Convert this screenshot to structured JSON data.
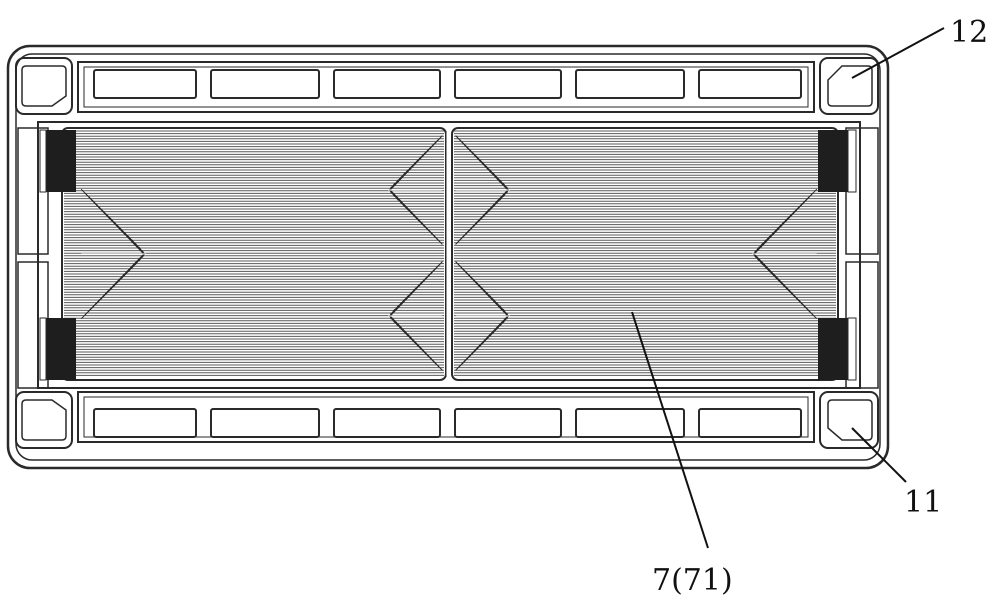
{
  "figure": {
    "labels": {
      "header_ports": "12",
      "port": "11",
      "flow_field": "7(71)"
    },
    "colors": {
      "line": "#2a2a2a",
      "channel_fill": "#5a5a5a",
      "manifold_fill": "#1e1e1e",
      "background": "#ffffff"
    }
  }
}
